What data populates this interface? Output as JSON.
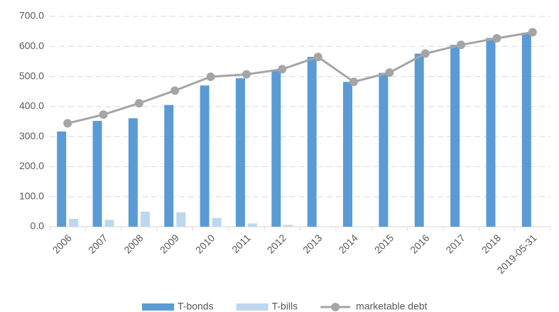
{
  "chart_data": {
    "type": "bar",
    "categories": [
      "2006",
      "2007",
      "2008",
      "2009",
      "2010",
      "2011",
      "2012",
      "2013",
      "2014",
      "2015",
      "2016",
      "2017",
      "2018",
      "2019-05-31"
    ],
    "series": [
      {
        "name": "T-bonds",
        "color": "#5b9bd5",
        "values": [
          317,
          352,
          361,
          405,
          470,
          494,
          518,
          565,
          482,
          512,
          576,
          605,
          628,
          645
        ]
      },
      {
        "name": "T-bills",
        "color": "#bdd7ee",
        "values": [
          26,
          23,
          50,
          48,
          29,
          11,
          6,
          null,
          null,
          null,
          null,
          null,
          null,
          null
        ]
      },
      {
        "name": "marketable debt",
        "type": "line",
        "color": "#a5a5a5",
        "values": [
          344,
          373,
          411,
          453,
          499,
          507,
          524,
          565,
          482,
          513,
          576,
          605,
          627,
          647
        ]
      }
    ],
    "ylim": [
      0,
      700
    ],
    "yticks": [
      {
        "value": 0,
        "label": "0.0"
      },
      {
        "value": 100,
        "label": "100.0"
      },
      {
        "value": 200,
        "label": "200.0"
      },
      {
        "value": 300,
        "label": "300.0"
      },
      {
        "value": 400,
        "label": "400.0"
      },
      {
        "value": 500,
        "label": "500.0"
      },
      {
        "value": 600,
        "label": "600.0"
      },
      {
        "value": 700,
        "label": "700.0"
      }
    ],
    "grid": true,
    "legend": "bottom"
  }
}
